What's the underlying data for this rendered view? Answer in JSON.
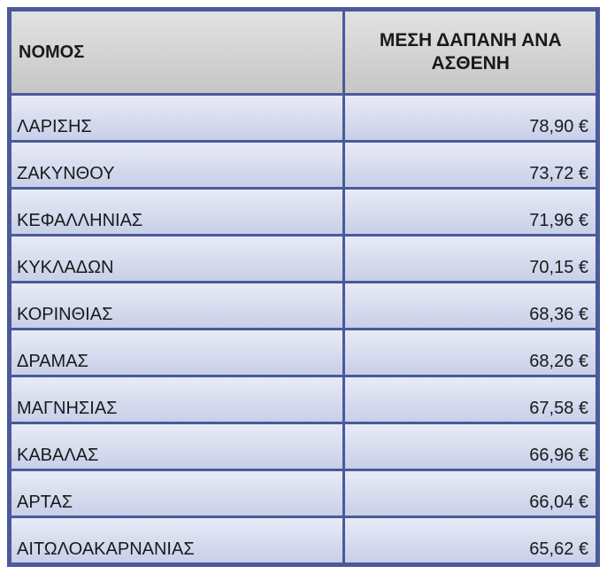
{
  "table": {
    "type": "table",
    "header_bg_gradient": [
      "#e2e2e2",
      "#c6c6c6"
    ],
    "row_bg_gradient": [
      "#e8ebf6",
      "#c8cfe8"
    ],
    "border_color": "#4a5a9a",
    "font_family": "Arial",
    "header_fontsize": 21,
    "cell_fontsize": 20,
    "columns": [
      {
        "label": "ΝΟΜΟΣ",
        "align": "left"
      },
      {
        "label": "ΜΕΣΗ ΔΑΠΑΝΗ ΑΝΑ ΑΣΘΕΝΗ",
        "align": "center"
      }
    ],
    "rows": [
      {
        "name": "ΛΑΡΙΣΗΣ",
        "value": "78,90 €"
      },
      {
        "name": "ΖΑΚΥΝΘΟΥ",
        "value": "73,72 €"
      },
      {
        "name": "ΚΕΦΑΛΛΗΝΙΑΣ",
        "value": "71,96 €"
      },
      {
        "name": "ΚΥΚΛΑΔΩΝ",
        "value": "70,15 €"
      },
      {
        "name": "ΚΟΡΙΝΘΙΑΣ",
        "value": "68,36 €"
      },
      {
        "name": "ΔΡΑΜΑΣ",
        "value": "68,26 €"
      },
      {
        "name": "ΜΑΓΝΗΣΙΑΣ",
        "value": "67,58 €"
      },
      {
        "name": "ΚΑΒΑΛΑΣ",
        "value": "66,96 €"
      },
      {
        "name": "ΑΡΤΑΣ",
        "value": "66,04 €"
      },
      {
        "name": "ΑΙΤΩΛΟΑΚΑΡΝΑΝΙΑΣ",
        "value": "65,62 €"
      }
    ]
  }
}
